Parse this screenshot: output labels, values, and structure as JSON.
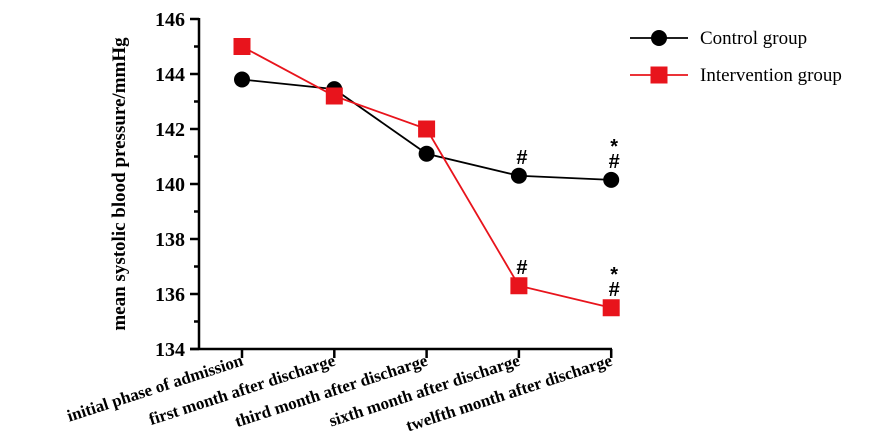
{
  "chart_data": {
    "type": "line",
    "title": "",
    "xlabel": "",
    "ylabel": "mean systolic blood pressure/mmHg",
    "categories": [
      "initial phase of admission",
      "first month after discharge",
      "third month after discharge",
      "sixth month after discharge",
      "twelfth month after discharge"
    ],
    "ylim": [
      134,
      146
    ],
    "yticks": [
      134,
      136,
      138,
      140,
      142,
      144,
      146
    ],
    "grid": false,
    "legend_position": "top-right",
    "series": [
      {
        "name": "Control group",
        "values": [
          143.8,
          143.45,
          141.1,
          140.3,
          140.15
        ],
        "color": "#000000",
        "marker": "circle",
        "annotations": [
          "",
          "",
          "",
          "#",
          "*#"
        ]
      },
      {
        "name": "Intervention group",
        "values": [
          145.0,
          143.2,
          142.0,
          136.3,
          135.5
        ],
        "color": "#e8141c",
        "marker": "square",
        "annotations": [
          "",
          "",
          "",
          "#",
          "*#"
        ]
      }
    ]
  }
}
